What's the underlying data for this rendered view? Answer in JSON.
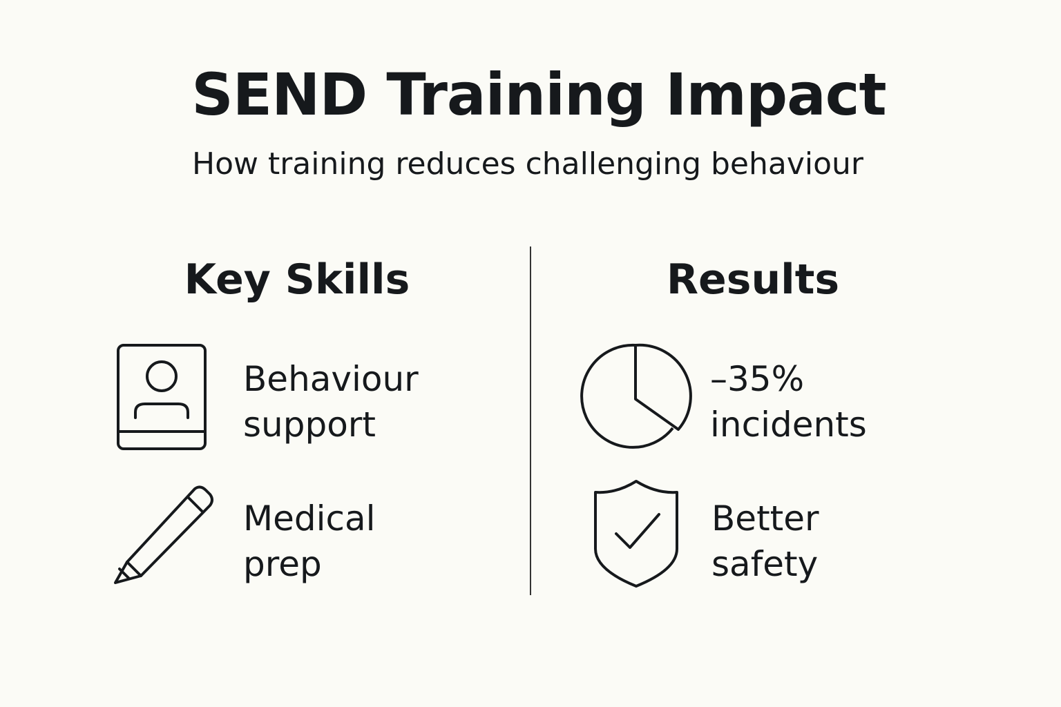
{
  "title": "SEND Training Impact",
  "subtitle": "How training reduces challenging behaviour",
  "left": {
    "heading": "Key Skills",
    "items": [
      {
        "icon": "person-book-icon",
        "line1": "Behaviour",
        "line2": "support"
      },
      {
        "icon": "pencil-icon",
        "line1": "Medical",
        "line2": "prep"
      }
    ]
  },
  "right": {
    "heading": "Results",
    "items": [
      {
        "icon": "pie-chart-icon",
        "line1": "–35%",
        "line2": "incidents"
      },
      {
        "icon": "shield-check-icon",
        "line1": "Better",
        "line2": "safety"
      }
    ]
  }
}
